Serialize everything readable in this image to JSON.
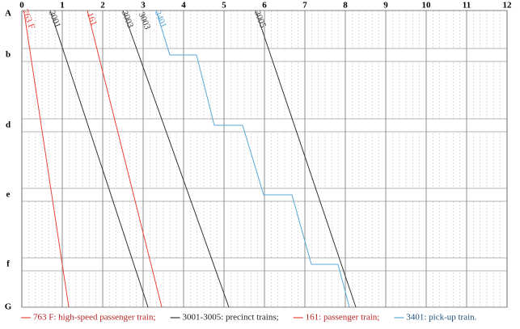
{
  "chart_data": {
    "type": "line",
    "xlim": [
      0,
      12
    ],
    "xticks": [
      0,
      1,
      2,
      3,
      4,
      5,
      6,
      7,
      8,
      9,
      10,
      11,
      12
    ],
    "categories": [
      "A",
      "b",
      "d",
      "e",
      "f",
      "G"
    ],
    "grid": true,
    "series": [
      {
        "name": "763 F",
        "color": "#e8453c",
        "x": [
          0.05,
          1.16
        ],
        "y": [
          "A",
          "G"
        ]
      },
      {
        "name": "3001",
        "color": "#333333",
        "x": [
          0.7,
          3.12
        ],
        "y": [
          "A",
          "G"
        ]
      },
      {
        "name": "161",
        "color": "#e8453c",
        "x": [
          1.62,
          3.46
        ],
        "y": [
          "A",
          "G"
        ]
      },
      {
        "name": "3003",
        "color": "#333333",
        "x": [
          2.5,
          5.12
        ],
        "y": [
          "A",
          "G"
        ]
      },
      {
        "name": "3401",
        "color": "#5aa9d6",
        "x": [
          3.32,
          3.66,
          4.32,
          4.76,
          5.46,
          5.98,
          6.68,
          7.16,
          7.82,
          8.1
        ],
        "y": [
          "A",
          "b",
          "b",
          "d",
          "d",
          "e",
          "e",
          "f",
          "f",
          "G"
        ]
      },
      {
        "name": "3005",
        "color": "#333333",
        "x": [
          5.78,
          8.26
        ],
        "y": [
          "A",
          "G"
        ]
      }
    ],
    "annotations": [
      "3003"
    ],
    "legend": [
      {
        "text": "763 F: high-speed passenger train;",
        "color": "#e8453c",
        "text_color": "#b22222"
      },
      {
        "text": "3001-3005: precinct trains;",
        "color": "#333333",
        "text_color": "#222222"
      },
      {
        "text": "161: passenger train;",
        "color": "#e8453c",
        "text_color": "#b22222"
      },
      {
        "text": "3401: pick-up train.",
        "color": "#5aa9d6",
        "text_color": "#1f4e79"
      }
    ]
  }
}
